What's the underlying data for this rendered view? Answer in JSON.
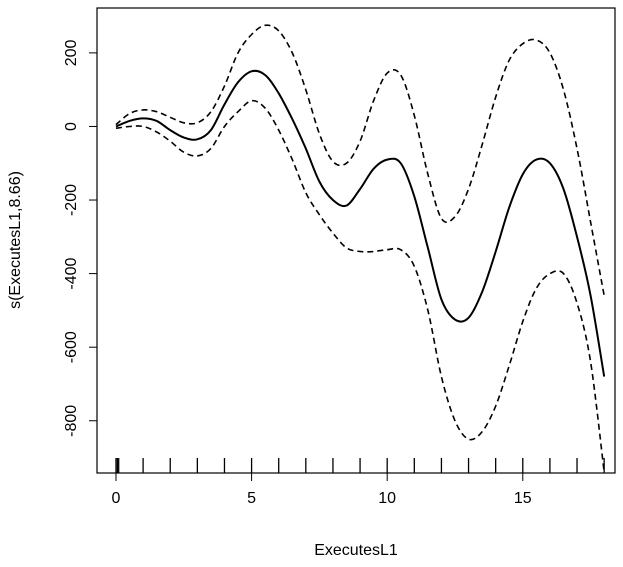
{
  "chart_data": {
    "type": "line",
    "xlabel": "ExecutesL1",
    "ylabel": "s(ExecutesL1,8.66)",
    "xlim": [
      -0.7,
      18.4
    ],
    "ylim": [
      -942,
      322
    ],
    "x_ticks": [
      0,
      5,
      10,
      15
    ],
    "x_tick_labels": [
      "0",
      "5",
      "10",
      "15"
    ],
    "y_ticks": [
      200,
      0,
      -200,
      -400,
      -600,
      -800
    ],
    "y_tick_labels": [
      "200",
      "0",
      "-200",
      "-400",
      "-600",
      "-800"
    ],
    "grid": false,
    "legend": "none",
    "rug": [
      0,
      0.05,
      0.1,
      1,
      2,
      3,
      4,
      5,
      6,
      7,
      8,
      9,
      10,
      11,
      12,
      13,
      14,
      15,
      16,
      17,
      18
    ],
    "series": [
      {
        "style": "solid",
        "x": [
          0,
          0.5,
          1,
          1.5,
          2,
          2.5,
          3,
          3.5,
          4,
          4.5,
          5,
          5.5,
          6,
          6.5,
          7,
          7.5,
          8,
          8.5,
          9,
          9.5,
          10,
          10.5,
          11,
          11.5,
          12,
          12.5,
          13,
          13.5,
          14,
          14.5,
          15,
          15.5,
          16,
          16.5,
          17,
          17.5,
          18
        ],
        "values": [
          0,
          15,
          22,
          15,
          -10,
          -30,
          -35,
          -10,
          60,
          120,
          150,
          140,
          90,
          20,
          -60,
          -150,
          -200,
          -215,
          -170,
          -115,
          -90,
          -100,
          -190,
          -330,
          -470,
          -525,
          -520,
          -450,
          -340,
          -220,
          -130,
          -90,
          -100,
          -170,
          -300,
          -460,
          -680
        ]
      },
      {
        "style": "dashed",
        "x": [
          0,
          0.5,
          1,
          1.5,
          2,
          2.5,
          3,
          3.5,
          4,
          4.5,
          5,
          5.5,
          6,
          6.5,
          7,
          7.5,
          8,
          8.5,
          9,
          9.5,
          10,
          10.5,
          11,
          11.5,
          12,
          12.5,
          13,
          13.5,
          14,
          14.5,
          15,
          15.5,
          16,
          16.5,
          17,
          17.5,
          18
        ],
        "values": [
          5,
          35,
          45,
          40,
          25,
          10,
          10,
          40,
          110,
          200,
          250,
          275,
          260,
          200,
          100,
          -20,
          -95,
          -100,
          -40,
          70,
          145,
          140,
          30,
          -130,
          -250,
          -245,
          -170,
          -50,
          80,
          180,
          225,
          235,
          200,
          100,
          -60,
          -260,
          -460
        ]
      },
      {
        "style": "dashed",
        "x": [
          0,
          0.5,
          1,
          1.5,
          2,
          2.5,
          3,
          3.5,
          4,
          4.5,
          5,
          5.5,
          6,
          6.5,
          7,
          7.5,
          8,
          8.5,
          9,
          9.5,
          10,
          10.5,
          11,
          11.5,
          12,
          12.5,
          13,
          13.5,
          14,
          14.5,
          15,
          15.5,
          16,
          16.5,
          17,
          17.5,
          18
        ],
        "values": [
          -5,
          0,
          0,
          -15,
          -40,
          -70,
          -80,
          -60,
          0,
          40,
          70,
          50,
          -10,
          -90,
          -180,
          -240,
          -290,
          -330,
          -340,
          -340,
          -335,
          -335,
          -380,
          -500,
          -680,
          -800,
          -850,
          -830,
          -760,
          -650,
          -530,
          -440,
          -400,
          -400,
          -480,
          -640,
          -940
        ]
      }
    ]
  }
}
